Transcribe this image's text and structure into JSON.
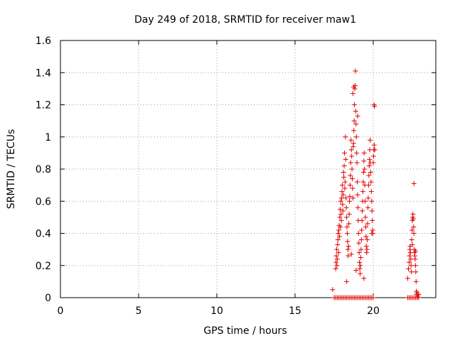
{
  "chart_data": {
    "type": "scatter",
    "title": "Day 249 of 2018, SRMTID for receiver maw1",
    "xlabel": "GPS time / hours",
    "ylabel": "SRMTID / TECUs",
    "xlim": [
      0,
      24
    ],
    "ylim": [
      0,
      1.6
    ],
    "xticks": [
      0,
      5,
      10,
      15,
      20
    ],
    "xtick_labels": [
      "0",
      "5",
      "10",
      "15",
      "20"
    ],
    "yticks": [
      0,
      0.2,
      0.4,
      0.6,
      0.8,
      1.0,
      1.2,
      1.4,
      1.6
    ],
    "ytick_labels": [
      "0",
      "0.2",
      "0.4",
      "0.6",
      "0.8",
      "1",
      "1.2",
      "1.4",
      "1.6"
    ],
    "grid": true,
    "marker": "+",
    "color": "#e00000",
    "series": [
      {
        "name": "maw1",
        "x": [
          17.5,
          17.6,
          17.7,
          17.8,
          17.9,
          18.0,
          18.1,
          18.2,
          18.3,
          18.4,
          18.5,
          18.6,
          18.7,
          18.8,
          18.9,
          19.0,
          19.1,
          19.2,
          19.3,
          19.4,
          19.5,
          19.6,
          19.7,
          19.8,
          19.9,
          20.0,
          17.4,
          17.6,
          17.62,
          17.64,
          17.66,
          17.68,
          17.7,
          17.72,
          17.74,
          17.76,
          17.78,
          17.8,
          17.82,
          17.84,
          17.86,
          17.88,
          17.9,
          17.92,
          17.94,
          17.96,
          17.98,
          18.0,
          18.02,
          18.04,
          18.06,
          18.08,
          18.1,
          18.12,
          18.14,
          18.16,
          18.18,
          18.2,
          18.22,
          18.24,
          18.26,
          18.28,
          18.3,
          18.32,
          18.34,
          18.36,
          18.38,
          18.4,
          18.42,
          18.44,
          18.46,
          18.48,
          18.5,
          18.52,
          18.54,
          18.56,
          18.58,
          18.6,
          18.62,
          18.64,
          18.66,
          18.68,
          18.7,
          18.72,
          18.74,
          18.76,
          18.78,
          18.8,
          18.82,
          18.84,
          18.86,
          18.88,
          18.9,
          18.92,
          18.94,
          18.96,
          18.98,
          19.0,
          19.02,
          19.04,
          19.06,
          19.08,
          19.1,
          19.12,
          19.14,
          19.16,
          19.18,
          19.2,
          19.22,
          19.24,
          19.26,
          19.28,
          19.3,
          19.32,
          19.34,
          19.36,
          19.38,
          19.4,
          19.42,
          19.44,
          19.46,
          19.48,
          19.5,
          19.52,
          19.54,
          19.56,
          19.58,
          19.6,
          19.62,
          19.64,
          19.66,
          19.68,
          19.7,
          19.72,
          19.74,
          19.76,
          19.78,
          19.8,
          19.82,
          19.84,
          19.86,
          19.88,
          19.9,
          19.92,
          19.94,
          19.96,
          19.98,
          20.0,
          20.02,
          20.04,
          20.06,
          20.08,
          18.7,
          18.75,
          19.0,
          20.05,
          20.1,
          18.3,
          18.6,
          18.9,
          19.4,
          19.9,
          22.2,
          22.3,
          22.4,
          22.5,
          22.6,
          22.7,
          22.8,
          22.9,
          22.2,
          22.25,
          22.3,
          22.32,
          22.34,
          22.36,
          22.38,
          22.4,
          22.42,
          22.44,
          22.46,
          22.48,
          22.5,
          22.52,
          22.54,
          22.56,
          22.58,
          22.6,
          22.62,
          22.64,
          22.66,
          22.68,
          22.7,
          22.72,
          22.74,
          22.76,
          22.78,
          22.8,
          22.85,
          22.9,
          22.6,
          22.5,
          22.7
        ],
        "y": [
          0,
          0,
          0,
          0,
          0,
          0,
          0,
          0,
          0,
          0,
          0,
          0,
          0,
          0,
          0,
          0,
          0,
          0,
          0,
          0,
          0,
          0,
          0,
          0,
          0,
          0,
          0.05,
          0.18,
          0.22,
          0.26,
          0.3,
          0.2,
          0.24,
          0.33,
          0.36,
          0.4,
          0.28,
          0.42,
          0.45,
          0.38,
          0.5,
          0.55,
          0.44,
          0.6,
          0.52,
          0.48,
          0.62,
          0.66,
          0.7,
          0.58,
          0.54,
          0.64,
          0.78,
          0.75,
          0.82,
          0.9,
          0.68,
          0.72,
          1.0,
          0.86,
          0.62,
          0.56,
          0.5,
          0.44,
          0.4,
          0.35,
          0.3,
          0.26,
          0.32,
          0.46,
          0.52,
          0.6,
          0.63,
          0.7,
          0.76,
          0.84,
          0.98,
          0.92,
          0.88,
          0.8,
          0.74,
          0.68,
          0.62,
          0.94,
          0.96,
          1.04,
          1.1,
          1.2,
          1.3,
          1.32,
          1.41,
          1.16,
          1.08,
          1.0,
          0.9,
          0.84,
          0.72,
          0.64,
          0.56,
          0.48,
          0.4,
          0.34,
          0.28,
          0.22,
          0.18,
          0.15,
          0.2,
          0.25,
          0.3,
          0.36,
          0.42,
          0.48,
          0.54,
          0.6,
          0.66,
          0.72,
          0.78,
          0.85,
          0.9,
          0.8,
          0.7,
          0.6,
          0.5,
          0.44,
          0.38,
          0.32,
          0.28,
          0.3,
          0.36,
          0.46,
          0.56,
          0.62,
          0.7,
          0.76,
          0.82,
          0.86,
          0.92,
          0.98,
          0.84,
          0.78,
          0.72,
          0.66,
          0.6,
          0.54,
          0.48,
          0.42,
          0.4,
          0.84,
          0.88,
          0.92,
          0.95,
          1.19,
          1.27,
          1.31,
          1.13,
          1.2,
          0.92,
          0.1,
          0.27,
          0.17,
          0.12,
          0.4,
          0,
          0,
          0,
          0,
          0,
          0,
          0,
          0,
          0.12,
          0.18,
          0.22,
          0.26,
          0.3,
          0.32,
          0.28,
          0.24,
          0.2,
          0.16,
          0.36,
          0.42,
          0.48,
          0.5,
          0.52,
          0.49,
          0.44,
          0.4,
          0.3,
          0.28,
          0.26,
          0.24,
          0.2,
          0.16,
          0.1,
          0.04,
          0.02,
          0.03,
          0.01,
          0.02,
          0.71,
          0.33,
          0.29
        ]
      }
    ]
  }
}
